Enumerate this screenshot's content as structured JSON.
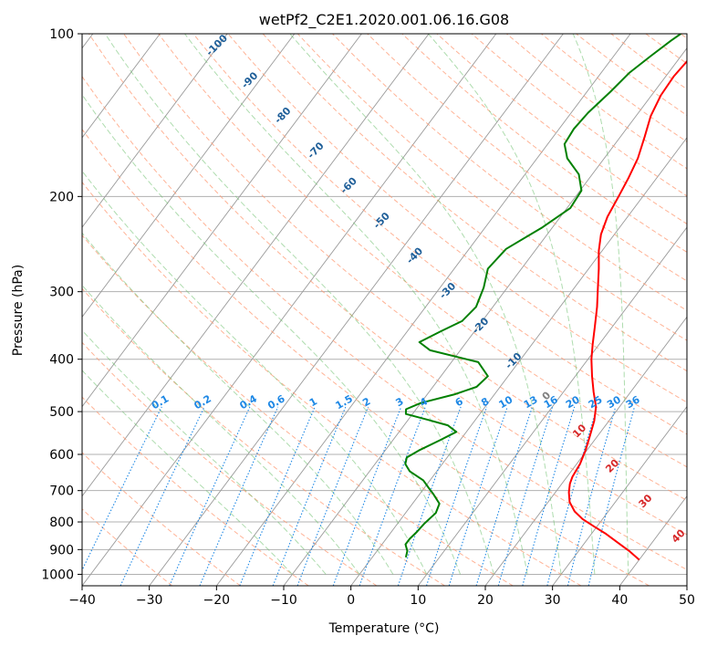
{
  "chart_data": {
    "type": "line",
    "title": "wetPf2_C2E1.2020.001.06.16.G08",
    "xlabel": "Temperature (°C)",
    "ylabel": "Pressure (hPa)",
    "xlim": [
      -40,
      50
    ],
    "ylim": [
      1050,
      100
    ],
    "y_scale": "log",
    "x_ticks": [
      -40,
      -30,
      -20,
      -10,
      0,
      10,
      20,
      30,
      40,
      50
    ],
    "y_ticks": [
      100,
      200,
      300,
      400,
      500,
      600,
      700,
      800,
      900,
      1000
    ],
    "grid": true,
    "series": [
      {
        "color": "#ff0000",
        "points": [
          [
            40.0,
            940
          ],
          [
            37.5,
            905
          ],
          [
            35.0,
            875
          ],
          [
            32.0,
            840
          ],
          [
            29.5,
            815
          ],
          [
            27.0,
            790
          ],
          [
            25.0,
            765
          ],
          [
            23.2,
            735
          ],
          [
            22.0,
            705
          ],
          [
            21.2,
            680
          ],
          [
            20.8,
            660
          ],
          [
            20.5,
            625
          ],
          [
            19.8,
            590
          ],
          [
            19.0,
            560
          ],
          [
            17.8,
            520
          ],
          [
            16.5,
            490
          ],
          [
            14.5,
            460
          ],
          [
            12.5,
            430
          ],
          [
            10.5,
            400
          ],
          [
            9.0,
            375
          ],
          [
            7.5,
            350
          ],
          [
            5.5,
            320
          ],
          [
            3.5,
            295
          ],
          [
            1.5,
            272
          ],
          [
            -0.5,
            252
          ],
          [
            -2.0,
            235
          ],
          [
            -3.0,
            218
          ],
          [
            -3.6,
            200
          ],
          [
            -4.2,
            185
          ],
          [
            -5.0,
            170
          ],
          [
            -6.4,
            155
          ],
          [
            -7.8,
            142
          ],
          [
            -8.6,
            130
          ],
          [
            -8.8,
            120
          ],
          [
            -8.5,
            112
          ],
          [
            -7.2,
            106
          ],
          [
            -5.0,
            100
          ]
        ]
      },
      {
        "color": "#008000",
        "points": [
          [
            5.0,
            930
          ],
          [
            4.5,
            905
          ],
          [
            3.5,
            880
          ],
          [
            3.5,
            860
          ],
          [
            3.8,
            835
          ],
          [
            4.0,
            805
          ],
          [
            4.5,
            770
          ],
          [
            4.0,
            740
          ],
          [
            2.0,
            710
          ],
          [
            0.5,
            690
          ],
          [
            -1.0,
            670
          ],
          [
            -4.0,
            645
          ],
          [
            -5.5,
            625
          ],
          [
            -6.0,
            608
          ],
          [
            -5.0,
            590
          ],
          [
            -3.0,
            565
          ],
          [
            -1.5,
            545
          ],
          [
            -3.5,
            530
          ],
          [
            -7.0,
            518
          ],
          [
            -11.0,
            505
          ],
          [
            -11.5,
            495
          ],
          [
            -10.0,
            482
          ],
          [
            -6.0,
            465
          ],
          [
            -3.5,
            450
          ],
          [
            -3.0,
            430
          ],
          [
            -6.0,
            405
          ],
          [
            -14.5,
            385
          ],
          [
            -17.0,
            372
          ],
          [
            -15.0,
            355
          ],
          [
            -13.0,
            340
          ],
          [
            -12.5,
            320
          ],
          [
            -13.5,
            295
          ],
          [
            -15.0,
            272
          ],
          [
            -14.5,
            250
          ],
          [
            -11.5,
            228
          ],
          [
            -9.5,
            210
          ],
          [
            -9.8,
            195
          ],
          [
            -12.0,
            182
          ],
          [
            -15.5,
            170
          ],
          [
            -17.5,
            160
          ],
          [
            -17.8,
            150
          ],
          [
            -17.5,
            140
          ],
          [
            -16.5,
            128
          ],
          [
            -15.8,
            118
          ],
          [
            -14.5,
            110
          ],
          [
            -13.2,
            103
          ],
          [
            -12.5,
            100
          ]
        ]
      }
    ],
    "background_lines": {
      "dry_adiabat_labels": [
        "-100",
        "-90",
        "-80",
        "-70",
        "-60",
        "-50",
        "-40",
        "-30",
        "-20",
        "-10",
        "0",
        "10",
        "20",
        "30",
        "40"
      ],
      "mixing_ratio_labels": [
        "0.1",
        "0.2",
        "0.4",
        "0.6",
        "1",
        "1.5",
        "2",
        "3",
        "4",
        "6",
        "8",
        "10",
        "13",
        "16",
        "20",
        "25",
        "30",
        "36"
      ],
      "colors": {
        "dry_adiabat": "#ff9a73",
        "moist_adiabat": "#6cbf6c",
        "mixing_ratio": "#1e88e5",
        "isotherm": "#555555",
        "adiabat_label": "#1f5f99",
        "warm_label": "#d62728"
      }
    }
  }
}
